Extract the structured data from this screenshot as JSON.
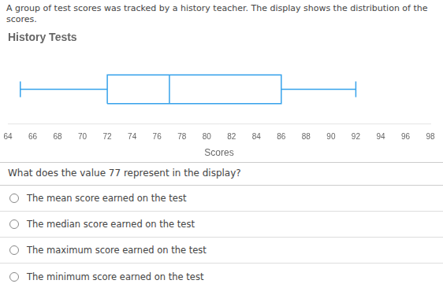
{
  "chart_data": {
    "type": "box",
    "title": "History Tests",
    "subtitle": "A group of test scores was tracked by a history teacher. The display shows the distribution of the scores.",
    "x_label": "Scores",
    "box": {
      "min": 65,
      "q1": 72,
      "median": 77,
      "q3": 86,
      "max": 92
    },
    "xlim": [
      64,
      98
    ],
    "xticks": [
      64,
      66,
      68,
      70,
      72,
      74,
      76,
      78,
      80,
      82,
      84,
      86,
      88,
      90,
      92,
      94,
      96,
      98
    ],
    "grid": false,
    "tick_labels": "x",
    "annotations": [
      "What does the value 77 represent in the display?",
      "The mean score earned on the test",
      "The median score earned on the test",
      "The maximum score earned on the test",
      "The minimum score earned on the test"
    ]
  }
}
